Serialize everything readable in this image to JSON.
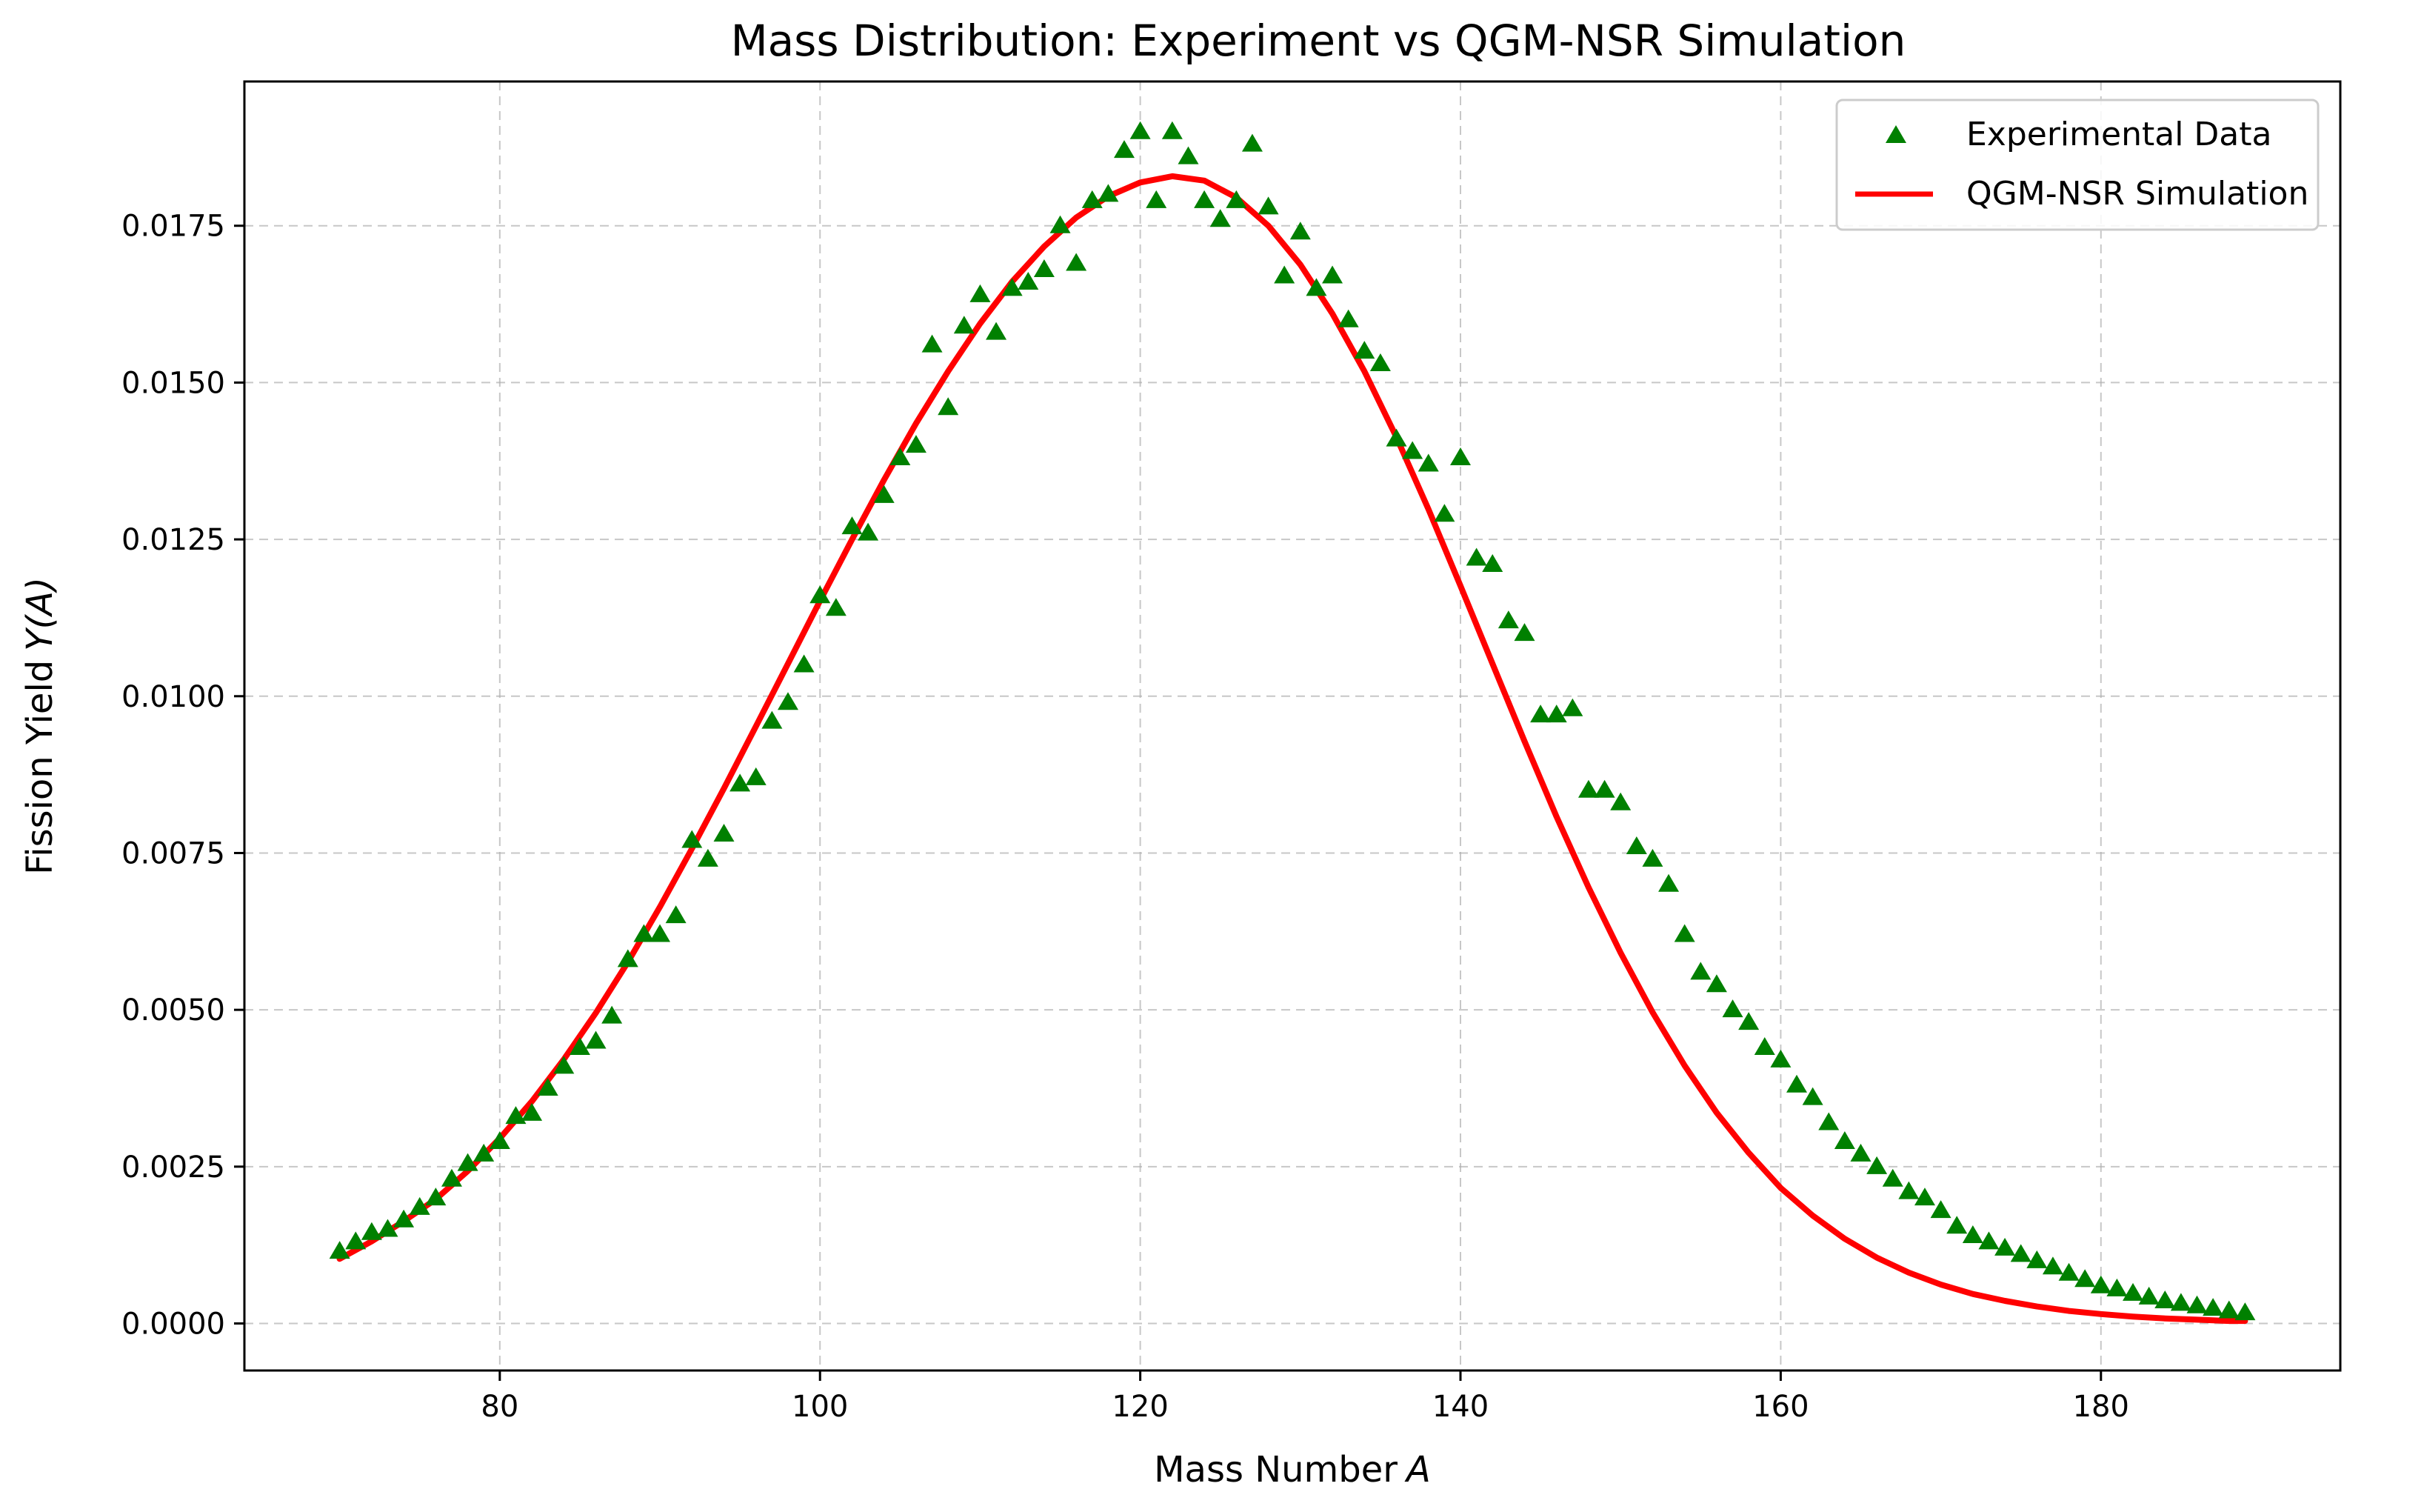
{
  "chart_data": {
    "type": "line",
    "title": "Mass Distribution: Experiment vs QGM-NSR Simulation",
    "xlabel": "Mass Number",
    "xlabel_var": "A",
    "ylabel": "Fission Yield",
    "ylabel_var": "Y(A)",
    "xlim": [
      64.05,
      194.95
    ],
    "ylim": [
      -0.00075,
      0.0198
    ],
    "xticks": [
      80,
      100,
      120,
      140,
      160,
      180
    ],
    "xtick_labels": [
      "80",
      "100",
      "120",
      "140",
      "160",
      "180"
    ],
    "yticks": [
      0,
      0.0025,
      0.005,
      0.0075,
      0.01,
      0.0125,
      0.015,
      0.0175
    ],
    "ytick_labels": [
      "0.0000",
      "0.0025",
      "0.0050",
      "0.0075",
      "0.0100",
      "0.0125",
      "0.0150",
      "0.0175"
    ],
    "grid": true,
    "legend_position": "top-right",
    "series": [
      {
        "name": "Experimental Data",
        "kind": "scatter",
        "marker": "triangle",
        "color": "#008000",
        "x": [
          70,
          71,
          72,
          73,
          74,
          75,
          76,
          77,
          78,
          79,
          80,
          81,
          82,
          83,
          84,
          85,
          86,
          87,
          88,
          89,
          90,
          91,
          92,
          93,
          94,
          95,
          96,
          97,
          98,
          99,
          100,
          101,
          102,
          103,
          104,
          105,
          106,
          107,
          108,
          109,
          110,
          111,
          112,
          113,
          114,
          115,
          116,
          117,
          118,
          119,
          120,
          121,
          122,
          123,
          124,
          125,
          126,
          127,
          128,
          129,
          130,
          131,
          132,
          133,
          134,
          135,
          136,
          137,
          138,
          139,
          140,
          141,
          142,
          143,
          144,
          145,
          146,
          147,
          148,
          149,
          150,
          151,
          152,
          153,
          154,
          155,
          156,
          157,
          158,
          159,
          160,
          161,
          162,
          163,
          164,
          165,
          166,
          167,
          168,
          169,
          170,
          171,
          172,
          173,
          174,
          175,
          176,
          177,
          178,
          179,
          180,
          181,
          182,
          183,
          184,
          185,
          186,
          187,
          188,
          189
        ],
        "y": [
          0.00115,
          0.0013,
          0.00145,
          0.0015,
          0.00165,
          0.00185,
          0.002,
          0.0023,
          0.00255,
          0.0027,
          0.0029,
          0.0033,
          0.00335,
          0.00375,
          0.0041,
          0.0044,
          0.0045,
          0.0049,
          0.0058,
          0.0062,
          0.0062,
          0.0065,
          0.0077,
          0.0074,
          0.0078,
          0.0086,
          0.0087,
          0.0096,
          0.0099,
          0.0105,
          0.0116,
          0.0114,
          0.0127,
          0.0126,
          0.0132,
          0.0138,
          0.014,
          0.0156,
          0.0146,
          0.0159,
          0.0164,
          0.0158,
          0.0165,
          0.0166,
          0.0168,
          0.0175,
          0.0169,
          0.0179,
          0.018,
          0.0187,
          0.019,
          0.0179,
          0.019,
          0.0186,
          0.0179,
          0.0176,
          0.0179,
          0.0188,
          0.0178,
          0.0167,
          0.0174,
          0.0165,
          0.0167,
          0.016,
          0.0155,
          0.0153,
          0.0141,
          0.0139,
          0.0137,
          0.0129,
          0.0138,
          0.0122,
          0.0121,
          0.0112,
          0.011,
          0.0097,
          0.0097,
          0.0098,
          0.0085,
          0.0085,
          0.0083,
          0.0076,
          0.0074,
          0.007,
          0.0062,
          0.0056,
          0.0054,
          0.005,
          0.0048,
          0.0044,
          0.0042,
          0.0038,
          0.0036,
          0.0032,
          0.0029,
          0.0027,
          0.0025,
          0.0023,
          0.0021,
          0.002,
          0.0018,
          0.00155,
          0.0014,
          0.0013,
          0.0012,
          0.0011,
          0.001,
          0.0009,
          0.0008,
          0.0007,
          0.0006,
          0.00055,
          0.00048,
          0.00042,
          0.00036,
          0.00032,
          0.00028,
          0.00024,
          0.0002,
          0.00017
        ]
      },
      {
        "name": "QGM-NSR Simulation",
        "kind": "line",
        "color": "#ff0000",
        "x": [
          70,
          72,
          74,
          76,
          78,
          80,
          82,
          84,
          86,
          88,
          90,
          92,
          94,
          96,
          98,
          100,
          102,
          104,
          106,
          108,
          110,
          112,
          114,
          116,
          118,
          120,
          122,
          124,
          126,
          128,
          130,
          132,
          134,
          136,
          138,
          140,
          142,
          144,
          146,
          148,
          150,
          152,
          154,
          156,
          158,
          160,
          162,
          164,
          166,
          168,
          170,
          172,
          174,
          176,
          178,
          180,
          182,
          184,
          186,
          188,
          189
        ],
        "y": [
          0.00103,
          0.00131,
          0.00163,
          0.00198,
          0.00243,
          0.00295,
          0.00354,
          0.00421,
          0.00495,
          0.00576,
          0.00664,
          0.00757,
          0.00853,
          0.00952,
          0.01052,
          0.01152,
          0.0125,
          0.01345,
          0.01435,
          0.01518,
          0.01594,
          0.01661,
          0.01717,
          0.01763,
          0.01797,
          0.01819,
          0.01829,
          0.01822,
          0.01795,
          0.0175,
          0.01688,
          0.0161,
          0.01518,
          0.01413,
          0.01298,
          0.01176,
          0.01052,
          0.00928,
          0.00808,
          0.00695,
          0.00591,
          0.00496,
          0.00411,
          0.00336,
          0.00272,
          0.00216,
          0.00172,
          0.00135,
          0.00105,
          0.00081,
          0.00062,
          0.00047,
          0.00036,
          0.00027,
          0.0002,
          0.00015,
          0.00011,
          8e-05,
          6e-05,
          4e-05,
          4e-05
        ]
      }
    ]
  }
}
